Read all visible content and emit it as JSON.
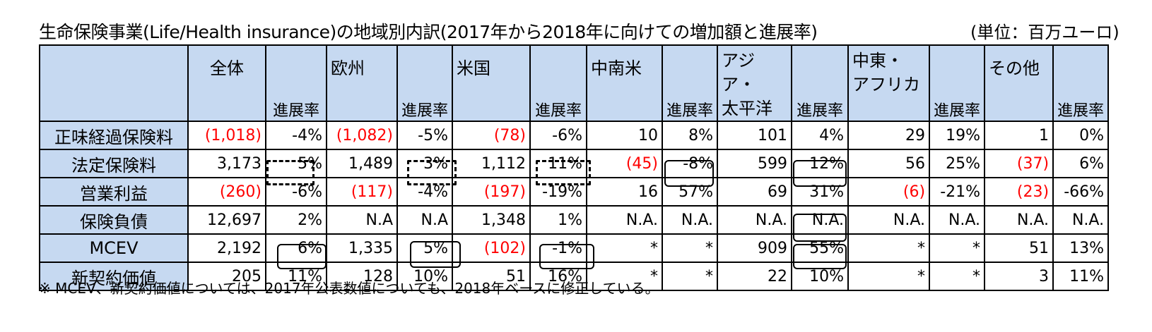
{
  "title": "生命保険事業(Life/Health insurance)の地域別内訳(2017年から2018年に向けての増加額と進展率)",
  "unit": "(単位：百万ユーロ)",
  "rate_label": "進展率",
  "headers": [
    "全体",
    "欧州",
    "米国",
    "中南米",
    "アジア・\n太平洋",
    "中東・\nアフリカ",
    "その他"
  ],
  "rows": [
    {
      "label": "正味経過保険料",
      "cells": [
        "(1,018)",
        "-4%",
        "(1,082)",
        "-5%",
        "(78)",
        "-6%",
        "10",
        "8%",
        "101",
        "4%",
        "29",
        "19%",
        "1",
        "0%"
      ]
    },
    {
      "label": "法定保険料",
      "cells": [
        "3,173",
        "5%",
        "1,489",
        "3%",
        "1,112",
        "11%",
        "(45)",
        "-8%",
        "599",
        "12%",
        "56",
        "25%",
        "(37)",
        "6%"
      ]
    },
    {
      "label": "営業利益",
      "cells": [
        "(260)",
        "-6%",
        "(117)",
        "-4%",
        "(197)",
        "-19%",
        "16",
        "57%",
        "69",
        "31%",
        "(6)",
        "-21%",
        "(23)",
        "-66%"
      ]
    },
    {
      "label": "保険負債",
      "cells": [
        "12,697",
        "2%",
        "N.A",
        "N.A",
        "1,348",
        "1%",
        "N.A.",
        "N.A.",
        "N.A.",
        "N.A.",
        "N.A.",
        "N.A.",
        "N.A.",
        "N.A."
      ]
    },
    {
      "label": "MCEV",
      "cells": [
        "2,192",
        "6%",
        "1,335",
        "5%",
        "(102)",
        "-1%",
        "*",
        "*",
        "909",
        "55%",
        "*",
        "*",
        "51",
        "13%"
      ]
    },
    {
      "label": "新契約価値",
      "cells": [
        "205",
        "11%",
        "128",
        "10%",
        "51",
        "16%",
        "*",
        "*",
        "22",
        "10%",
        "*",
        "*",
        "3",
        "11%"
      ]
    }
  ],
  "note": "※ MCEV、新契約価値については、2017年公表数値についても、2018年ベースに修正している。"
}
